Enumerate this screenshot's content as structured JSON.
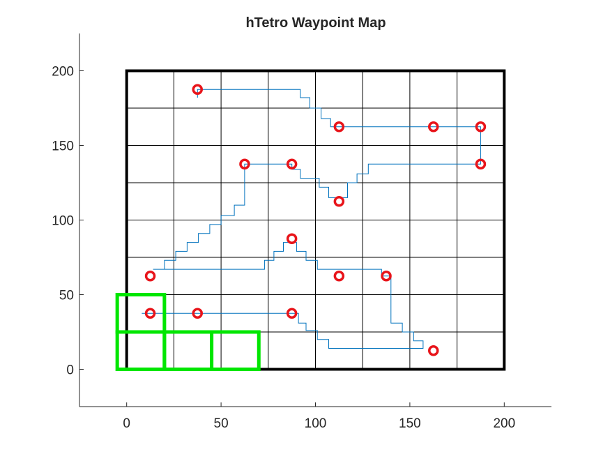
{
  "chart_data": {
    "type": "line",
    "title": "hTetro Waypoint Map",
    "xlabel": "",
    "ylabel": "",
    "xlim": [
      -25,
      225
    ],
    "ylim": [
      -25,
      225
    ],
    "x_ticks": [
      0,
      50,
      100,
      150,
      200
    ],
    "y_ticks": [
      0,
      50,
      100,
      150,
      200
    ],
    "grid": {
      "cell_size": 25,
      "extent": [
        0,
        200,
        0,
        200
      ],
      "border_color": "#000000",
      "line_color": "#000000"
    },
    "waypoints": {
      "marker": "circle",
      "color": "#e8141a",
      "points": [
        [
          37.5,
          187.5
        ],
        [
          112.5,
          162.5
        ],
        [
          162.5,
          162.5
        ],
        [
          187.5,
          162.5
        ],
        [
          62.5,
          137.5
        ],
        [
          87.5,
          137.5
        ],
        [
          187.5,
          137.5
        ],
        [
          112.5,
          112.5
        ],
        [
          87.5,
          87.5
        ],
        [
          12.5,
          62.5
        ],
        [
          112.5,
          62.5
        ],
        [
          137.5,
          62.5
        ],
        [
          12.5,
          37.5
        ],
        [
          37.5,
          37.5
        ],
        [
          87.5,
          37.5
        ],
        [
          162.5,
          12.5
        ]
      ]
    },
    "path": {
      "color": "#0072bd",
      "points": [
        [
          37.5,
          182
        ],
        [
          37.5,
          187.5
        ],
        [
          92,
          187.5
        ],
        [
          92,
          182
        ],
        [
          97,
          182
        ],
        [
          97,
          175
        ],
        [
          103,
          175
        ],
        [
          103,
          168
        ],
        [
          108,
          168
        ],
        [
          108,
          162.5
        ],
        [
          187.5,
          162.5
        ],
        [
          187.5,
          137.5
        ],
        [
          128,
          137.5
        ],
        [
          128,
          131
        ],
        [
          122,
          131
        ],
        [
          122,
          125
        ],
        [
          117,
          125
        ],
        [
          117,
          115
        ],
        [
          107,
          115
        ],
        [
          107,
          122
        ],
        [
          102,
          122
        ],
        [
          102,
          128
        ],
        [
          92,
          128
        ],
        [
          92,
          134
        ],
        [
          87.5,
          134
        ],
        [
          87.5,
          137.5
        ],
        [
          62.5,
          137.5
        ],
        [
          62.5,
          110
        ],
        [
          57,
          110
        ],
        [
          57,
          103
        ],
        [
          50,
          103
        ],
        [
          50,
          97
        ],
        [
          44,
          97
        ],
        [
          44,
          91
        ],
        [
          38,
          91
        ],
        [
          38,
          85
        ],
        [
          32,
          85
        ],
        [
          32,
          79
        ],
        [
          26,
          79
        ],
        [
          26,
          73
        ],
        [
          20,
          73
        ],
        [
          20,
          67
        ],
        [
          14,
          67
        ],
        [
          73,
          67
        ],
        [
          73,
          73
        ],
        [
          78,
          73
        ],
        [
          78,
          79
        ],
        [
          83,
          79
        ],
        [
          83,
          85
        ],
        [
          90,
          85
        ],
        [
          90,
          79
        ],
        [
          95,
          79
        ],
        [
          95,
          73
        ],
        [
          101,
          73
        ],
        [
          101,
          67
        ],
        [
          135,
          67
        ],
        [
          135,
          62.5
        ],
        [
          140,
          62.5
        ],
        [
          140,
          31
        ],
        [
          146,
          31
        ],
        [
          146,
          25
        ],
        [
          152,
          25
        ],
        [
          152,
          19
        ],
        [
          157,
          19
        ],
        [
          157,
          14
        ],
        [
          107,
          14
        ],
        [
          107,
          20
        ],
        [
          101,
          20
        ],
        [
          101,
          26
        ],
        [
          95,
          26
        ],
        [
          95,
          31
        ],
        [
          91,
          31
        ],
        [
          91,
          37.5
        ],
        [
          8,
          37.5
        ]
      ]
    },
    "shapes": {
      "color": "#00e600",
      "rects": [
        [
          -5,
          25,
          20,
          50
        ],
        [
          -5,
          0,
          20,
          25
        ],
        [
          20,
          0,
          45,
          25
        ],
        [
          45,
          0,
          70,
          25
        ]
      ]
    }
  }
}
